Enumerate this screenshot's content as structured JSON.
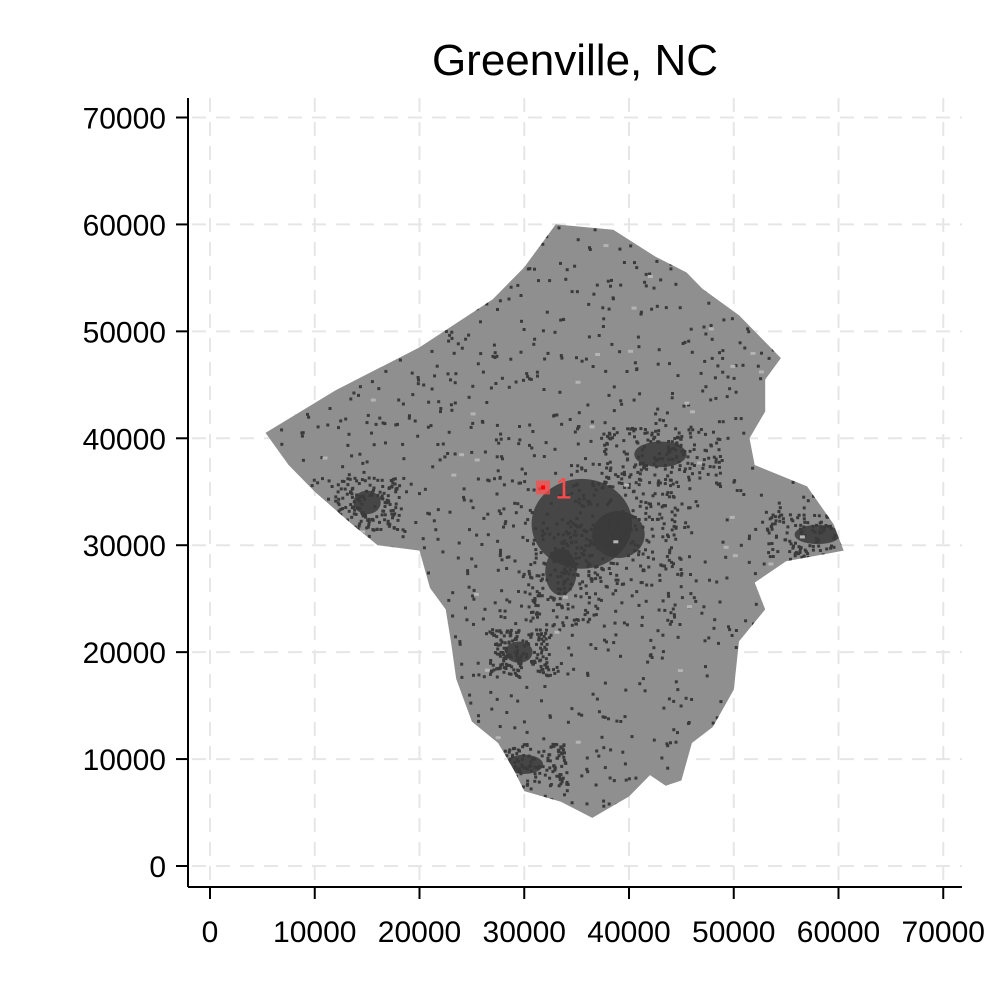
{
  "chart_data": {
    "type": "scatter",
    "title": "Greenville, NC",
    "xlabel": "",
    "ylabel": "",
    "xlim": [
      -2000,
      72000
    ],
    "ylim": [
      -2000,
      72000
    ],
    "x_ticks": [
      0,
      10000,
      20000,
      30000,
      40000,
      50000,
      60000,
      70000
    ],
    "y_ticks": [
      0,
      10000,
      20000,
      30000,
      40000,
      50000,
      60000,
      70000
    ],
    "grid": true,
    "grid_style": "dashed",
    "region": {
      "name": "county",
      "fill": "#8f8f8f",
      "outline": [
        [
          5300,
          40500
        ],
        [
          12000,
          44500
        ],
        [
          20000,
          48500
        ],
        [
          27000,
          53000
        ],
        [
          30000,
          56000
        ],
        [
          33000,
          60000
        ],
        [
          38500,
          59500
        ],
        [
          42500,
          57000
        ],
        [
          45500,
          55500
        ],
        [
          47000,
          54000
        ],
        [
          50500,
          51500
        ],
        [
          53000,
          49000
        ],
        [
          54500,
          47500
        ],
        [
          53000,
          45500
        ],
        [
          53000,
          42500
        ],
        [
          51500,
          40000
        ],
        [
          52000,
          37500
        ],
        [
          57000,
          35500
        ],
        [
          59500,
          32000
        ],
        [
          60500,
          29500
        ],
        [
          55000,
          28500
        ],
        [
          52000,
          26500
        ],
        [
          53000,
          24000
        ],
        [
          50500,
          21000
        ],
        [
          50000,
          16500
        ],
        [
          48000,
          13000
        ],
        [
          46000,
          11500
        ],
        [
          45000,
          8000
        ],
        [
          43500,
          7500
        ],
        [
          42000,
          8500
        ],
        [
          40000,
          6500
        ],
        [
          36500,
          4500
        ],
        [
          33500,
          6000
        ],
        [
          30000,
          7000
        ],
        [
          29000,
          9000
        ],
        [
          27500,
          11500
        ],
        [
          25000,
          13500
        ],
        [
          23500,
          17500
        ],
        [
          23000,
          21000
        ],
        [
          22500,
          24000
        ],
        [
          21000,
          26000
        ],
        [
          20000,
          29500
        ],
        [
          16000,
          30000
        ],
        [
          13500,
          32000
        ],
        [
          10000,
          35000
        ],
        [
          7500,
          37500
        ]
      ]
    },
    "developed_clusters": [
      {
        "x": 35500,
        "y": 32000,
        "rx": 4800,
        "ry": 4200
      },
      {
        "x": 33500,
        "y": 27500,
        "rx": 1500,
        "ry": 2200
      },
      {
        "x": 39000,
        "y": 31000,
        "rx": 2500,
        "ry": 2200
      },
      {
        "x": 15000,
        "y": 34000,
        "rx": 1300,
        "ry": 1100
      },
      {
        "x": 29500,
        "y": 20000,
        "rx": 1300,
        "ry": 1000
      },
      {
        "x": 30000,
        "y": 9500,
        "rx": 1800,
        "ry": 900
      },
      {
        "x": 43000,
        "y": 38500,
        "rx": 2500,
        "ry": 1200
      },
      {
        "x": 58000,
        "y": 31000,
        "rx": 2200,
        "ry": 900
      }
    ],
    "points": [
      {
        "label": "1",
        "x": 31800,
        "y": 35400,
        "color": "#ff4a4a"
      }
    ],
    "colors": {
      "region_fill": "#8f8f8f",
      "developed": "#3a3a3a",
      "light_patch": "#b4b4b4",
      "marker": "#ff4a4a",
      "grid": "#e6e6e6",
      "axis": "#000000"
    }
  }
}
